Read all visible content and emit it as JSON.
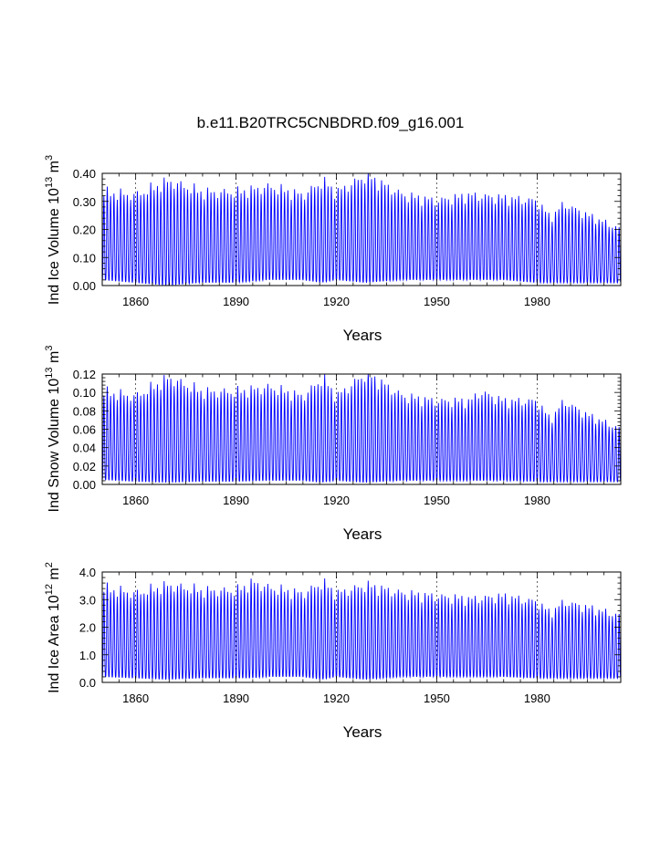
{
  "figure_title": "b.e11.B20TRC5CNBDRD.f09_g16.001",
  "colors": {
    "series": "#0000ff",
    "axes": "#000000",
    "grid": "#000000",
    "background": "#ffffff"
  },
  "chart_data": [
    {
      "type": "line",
      "title": "b.e11.B20TRC5CNBDRD.f09_g16.001",
      "xlabel": "Years",
      "ylabel": {
        "prefix": "Ind Ice Volume 10",
        "exp": "13",
        "unit": " m",
        "unit_exp": "3"
      },
      "xlim": [
        1850,
        2005
      ],
      "ylim": [
        0,
        0.4
      ],
      "xticks": [
        1860,
        1890,
        1920,
        1950,
        1980
      ],
      "yticks": [
        "0.00",
        "0.10",
        "0.20",
        "0.30",
        "0.40"
      ],
      "x_gridlines": "dashed at major ticks",
      "series": [
        {
          "name": "Ind Ice Volume",
          "sampling": "monthly seasonal cycle, one peak per year",
          "x": [
            1850,
            1860,
            1870,
            1880,
            1890,
            1900,
            1910,
            1916,
            1920,
            1929,
            1940,
            1950,
            1960,
            1970,
            1980,
            1984,
            1988,
            1995,
            2005
          ],
          "annual_max": [
            0.33,
            0.32,
            0.37,
            0.33,
            0.33,
            0.35,
            0.32,
            0.37,
            0.33,
            0.39,
            0.32,
            0.3,
            0.32,
            0.31,
            0.3,
            0.24,
            0.29,
            0.25,
            0.2
          ],
          "annual_min": [
            0.02,
            0.01,
            0.0,
            0.01,
            0.01,
            0.02,
            0.02,
            0.01,
            0.02,
            0.01,
            0.02,
            0.02,
            0.02,
            0.02,
            0.01,
            0.01,
            0.01,
            0.01,
            0.01
          ]
        }
      ]
    },
    {
      "type": "line",
      "title": "",
      "xlabel": "Years",
      "ylabel": {
        "prefix": "Ind Snow Volume 10",
        "exp": "13",
        "unit": " m",
        "unit_exp": "3"
      },
      "xlim": [
        1850,
        2005
      ],
      "ylim": [
        0,
        0.12
      ],
      "xticks": [
        1860,
        1890,
        1920,
        1950,
        1980
      ],
      "yticks": [
        "0.00",
        "0.02",
        "0.04",
        "0.06",
        "0.08",
        "0.10",
        "0.12"
      ],
      "x_gridlines": "dashed at major ticks",
      "series": [
        {
          "name": "Ind Snow Volume",
          "sampling": "monthly seasonal cycle, one peak per year",
          "x": [
            1850,
            1860,
            1870,
            1880,
            1890,
            1900,
            1910,
            1916,
            1920,
            1929,
            1940,
            1950,
            1960,
            1963,
            1970,
            1980,
            1984,
            1988,
            1995,
            2005
          ],
          "annual_max": [
            0.1,
            0.095,
            0.115,
            0.1,
            0.1,
            0.105,
            0.095,
            0.115,
            0.095,
            0.12,
            0.095,
            0.09,
            0.09,
            0.1,
            0.09,
            0.09,
            0.07,
            0.09,
            0.075,
            0.06
          ],
          "annual_min": [
            0.005,
            0.003,
            0.002,
            0.003,
            0.003,
            0.004,
            0.004,
            0.002,
            0.004,
            0.002,
            0.004,
            0.004,
            0.004,
            0.004,
            0.004,
            0.003,
            0.003,
            0.003,
            0.003,
            0.003
          ]
        }
      ]
    },
    {
      "type": "line",
      "title": "",
      "xlabel": "Years",
      "ylabel": {
        "prefix": "Ind Ice Area 10",
        "exp": "12",
        "unit": " m",
        "unit_exp": "2"
      },
      "xlim": [
        1850,
        2005
      ],
      "ylim": [
        0,
        4.0
      ],
      "xticks": [
        1860,
        1890,
        1920,
        1950,
        1980
      ],
      "yticks": [
        "0.0",
        "1.0",
        "2.0",
        "3.0",
        "4.0"
      ],
      "x_gridlines": "dashed at major ticks",
      "series": [
        {
          "name": "Ind Ice Area",
          "sampling": "monthly seasonal cycle, one peak per year",
          "x": [
            1850,
            1860,
            1870,
            1880,
            1890,
            1895,
            1900,
            1910,
            1916,
            1920,
            1929,
            1940,
            1950,
            1960,
            1970,
            1980,
            1984,
            1988,
            1995,
            2005
          ],
          "annual_max": [
            3.4,
            3.2,
            3.5,
            3.3,
            3.3,
            3.6,
            3.4,
            3.2,
            3.6,
            3.2,
            3.5,
            3.2,
            3.1,
            3.0,
            3.1,
            2.9,
            2.5,
            2.9,
            2.7,
            2.4
          ],
          "annual_min": [
            0.2,
            0.15,
            0.1,
            0.15,
            0.15,
            0.15,
            0.2,
            0.2,
            0.1,
            0.2,
            0.1,
            0.2,
            0.2,
            0.2,
            0.2,
            0.15,
            0.15,
            0.15,
            0.15,
            0.15
          ]
        }
      ]
    }
  ]
}
